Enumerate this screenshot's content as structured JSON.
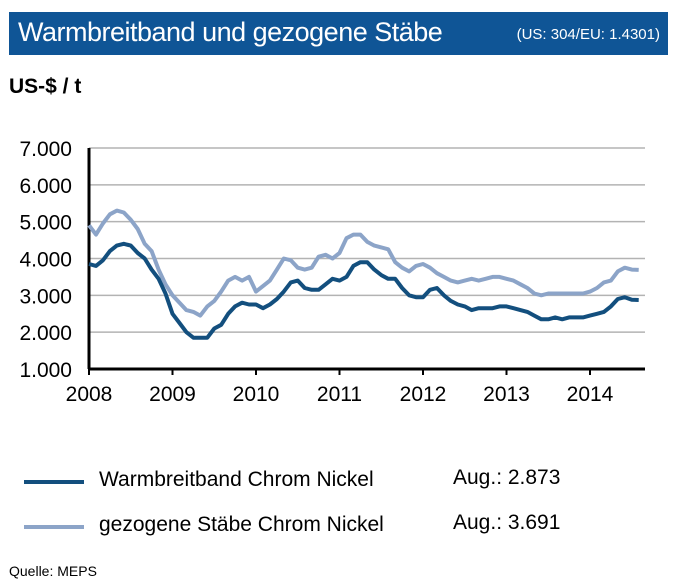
{
  "header": {
    "title": "Warmbreitband und gezogene Stäbe",
    "subtitle": "(US: 304/EU:  1.4301)",
    "unit": "US-$ / t"
  },
  "chart_data": {
    "type": "line",
    "title": "Warmbreitband und gezogene Stäbe",
    "ylabel": "US-$ / t",
    "ylim": [
      1000,
      7000
    ],
    "yticks": [
      "1.000",
      "2.000",
      "3.000",
      "4.000",
      "5.000",
      "6.000",
      "7.000"
    ],
    "xticks": [
      "2008",
      "2009",
      "2010",
      "2011",
      "2012",
      "2013",
      "2014"
    ],
    "x_start": "2008-01",
    "x_frequency": "monthly",
    "grid": true,
    "legend_placement": "bottom",
    "series": [
      {
        "name": "Warmbreitband Chrom Nickel",
        "color": "#134F7E",
        "latest_label": "Aug.: 2.873",
        "values": [
          3850,
          3800,
          3950,
          4200,
          4350,
          4400,
          4350,
          4150,
          4000,
          3700,
          3450,
          3050,
          2500,
          2250,
          2000,
          1850,
          1850,
          1850,
          2100,
          2200,
          2500,
          2700,
          2800,
          2750,
          2750,
          2650,
          2750,
          2900,
          3100,
          3350,
          3400,
          3200,
          3150,
          3150,
          3300,
          3450,
          3400,
          3500,
          3800,
          3900,
          3900,
          3700,
          3550,
          3450,
          3450,
          3200,
          3000,
          2950,
          2950,
          3150,
          3200,
          3000,
          2850,
          2750,
          2700,
          2600,
          2650,
          2650,
          2650,
          2700,
          2700,
          2650,
          2600,
          2550,
          2450,
          2350,
          2350,
          2400,
          2350,
          2400,
          2400,
          2400,
          2450,
          2500,
          2550,
          2700,
          2900,
          2950,
          2880,
          2873
        ]
      },
      {
        "name": "gezogene Stäbe Chrom Nickel",
        "color": "#8CA4C8",
        "latest_label": "Aug.: 3.691",
        "values": [
          4900,
          4650,
          4950,
          5200,
          5300,
          5250,
          5050,
          4800,
          4400,
          4200,
          3700,
          3300,
          3000,
          2800,
          2600,
          2550,
          2450,
          2700,
          2850,
          3100,
          3400,
          3500,
          3400,
          3500,
          3100,
          3250,
          3400,
          3700,
          4000,
          3950,
          3750,
          3700,
          3750,
          4050,
          4100,
          4000,
          4150,
          4550,
          4650,
          4650,
          4450,
          4350,
          4300,
          4250,
          3900,
          3750,
          3650,
          3800,
          3850,
          3750,
          3600,
          3500,
          3400,
          3350,
          3400,
          3450,
          3400,
          3450,
          3500,
          3500,
          3450,
          3400,
          3300,
          3200,
          3050,
          3000,
          3050,
          3050,
          3050,
          3050,
          3050,
          3050,
          3100,
          3200,
          3350,
          3400,
          3650,
          3750,
          3700,
          3691
        ]
      }
    ]
  },
  "footer": {
    "source": "Quelle:  MEPS"
  }
}
